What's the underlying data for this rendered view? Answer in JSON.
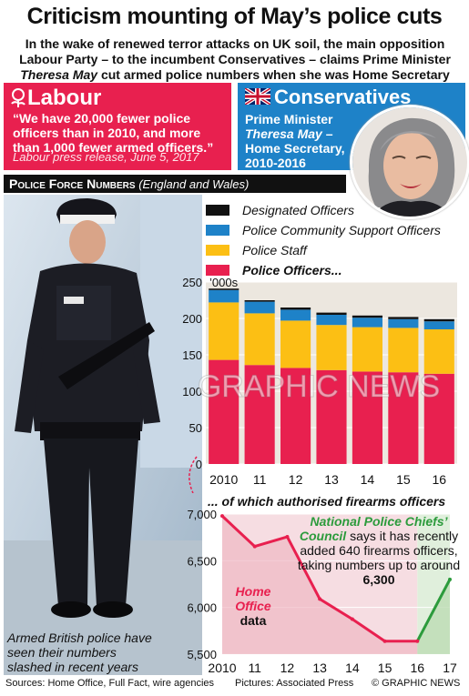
{
  "headline": "Criticism mounting of May’s police cuts",
  "standfirst": {
    "line1": "In the wake of renewed terror attacks on UK soil, the main opposition",
    "line2": "Labour Party – to the incumbent Conservatives – claims Prime Minister",
    "line3_name": "Theresa May",
    "line3_rest": " cut armed police numbers when she was Home Secretary"
  },
  "labour": {
    "name": "Labour",
    "quote": "“We have 20,000 fewer police officers than in 2010, and more than 1,000 fewer armed officers.”",
    "source": "Labour press release, June 5, 2017",
    "color": "#e8204f"
  },
  "conservatives": {
    "name": "Conservatives",
    "role_line1": "Prime Minister",
    "role_name": "Theresa May",
    "role_dash": " –",
    "role_line3": "Home Secretary,",
    "role_line4": "2010-2016",
    "color": "#1e82c8"
  },
  "section": {
    "title": "Police Force Numbers",
    "subtitle": "(England and Wales)"
  },
  "photo_caption": "Armed British police have seen their numbers slashed in recent years",
  "watermark": "GRAPHIC NEWS",
  "chart_data": [
    {
      "type": "bar",
      "stacked": true,
      "unit_label": "’000s",
      "categories": [
        "2010",
        "11",
        "12",
        "13",
        "14",
        "15",
        "16"
      ],
      "ylim": [
        0,
        250
      ],
      "yticks": [
        "0",
        "50",
        "100",
        "150",
        "200",
        "250"
      ],
      "series": [
        {
          "name": "Police Officers...",
          "color": "#e8204f",
          "values": [
            143,
            136,
            132,
            129,
            127,
            126,
            124
          ]
        },
        {
          "name": "Police Staff",
          "color": "#fcbf14",
          "values": [
            79,
            71,
            65,
            62,
            61,
            61,
            61
          ]
        },
        {
          "name": "Police Community Support Officers",
          "color": "#1e82c8",
          "values": [
            17,
            16,
            15,
            14,
            13,
            12,
            11
          ]
        },
        {
          "name": "Designated Officers",
          "color": "#111111",
          "values": [
            2,
            2,
            3,
            3,
            3,
            3,
            3
          ]
        }
      ],
      "legend_order": [
        "Designated Officers",
        "Police Community Support Officers",
        "Police Staff",
        "Police Officers..."
      ]
    },
    {
      "type": "line",
      "title": "... of which authorised firearms officers",
      "x": [
        "2010",
        "11",
        "12",
        "13",
        "14",
        "15",
        "16",
        "17"
      ],
      "values": [
        6979,
        6653,
        6756,
        6090,
        5875,
        5639,
        5639,
        6300
      ],
      "ylim": [
        5500,
        7000
      ],
      "yticks": [
        "5,500",
        "6,000",
        "6,500",
        "7,000"
      ],
      "home_office_label": "Home Office data",
      "home_office_color": "#e8204f",
      "npcc_color": "#2c9b3c"
    }
  ],
  "npcc": {
    "name": "National Police Chiefs’ Council",
    "text": " says it has recently added 640 firearms officers, taking numbers up to around ",
    "figure": "6,300"
  },
  "footer": {
    "sources": "Sources: Home Office, Full Fact, wire agencies",
    "pictures": "Pictures: Associated Press",
    "credit": "© GRAPHIC NEWS"
  }
}
